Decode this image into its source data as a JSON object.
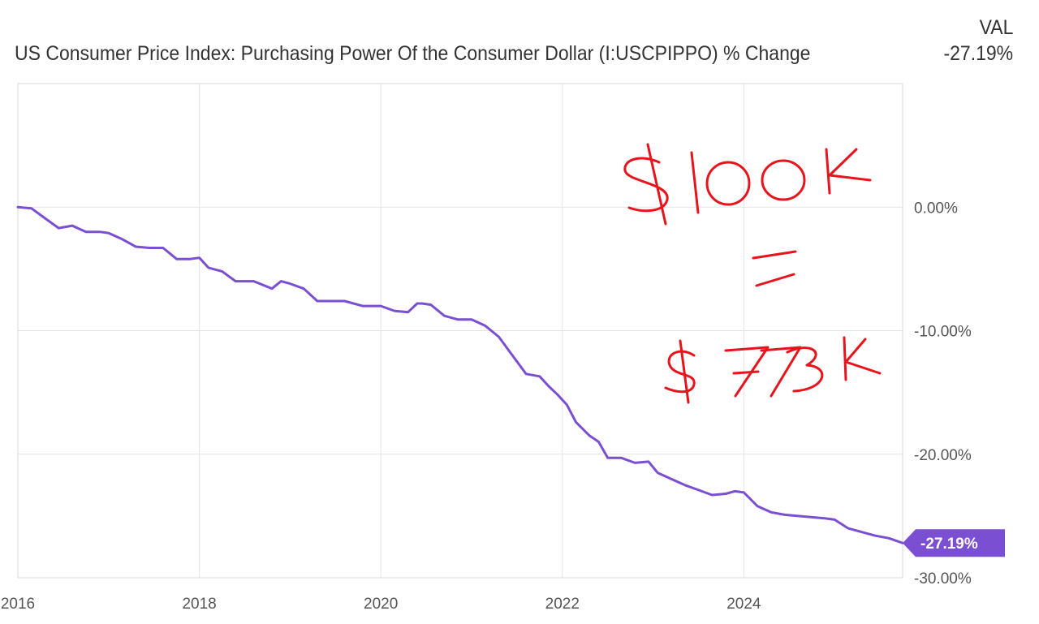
{
  "header": {
    "title": "US Consumer Price Index: Purchasing Power Of the Consumer Dollar (I:USCPIPPO) % Change",
    "val_label": "VAL",
    "val_value": "-27.19%"
  },
  "annotation": {
    "line1": "$100K",
    "line2": "=",
    "line3": "$73K",
    "color": "#e8141c"
  },
  "chart_data": {
    "type": "line",
    "title": "US Consumer Price Index: Purchasing Power Of the Consumer Dollar (I:USCPIPPO) % Change",
    "xlabel": "",
    "ylabel": "",
    "xlim": [
      2016.0,
      2025.75
    ],
    "ylim": [
      -30.0,
      10.0
    ],
    "grid": true,
    "line_color": "#7b4fd1",
    "x_ticks": [
      {
        "value": 2016,
        "label": "2016"
      },
      {
        "value": 2018,
        "label": "2018"
      },
      {
        "value": 2020,
        "label": "2020"
      },
      {
        "value": 2022,
        "label": "2022"
      },
      {
        "value": 2024,
        "label": "2024"
      }
    ],
    "y_ticks": [
      {
        "value": 0,
        "label": "0.00%"
      },
      {
        "value": -10,
        "label": "-10.00%"
      },
      {
        "value": -20,
        "label": "-20.00%"
      },
      {
        "value": -30,
        "label": "-30.00%"
      }
    ],
    "last_value_label": "-27.19%",
    "series": [
      {
        "x": [
          2016.0,
          2016.15,
          2016.3,
          2016.45,
          2016.6,
          2016.75,
          2016.9,
          2017.0,
          2017.15,
          2017.3,
          2017.45,
          2017.6,
          2017.75,
          2017.9,
          2018.0,
          2018.1,
          2018.25,
          2018.4,
          2018.6,
          2018.8,
          2018.9,
          2019.0,
          2019.15,
          2019.3,
          2019.45,
          2019.6,
          2019.8,
          2020.0,
          2020.15,
          2020.3,
          2020.4,
          2020.45,
          2020.55,
          2020.7,
          2020.85,
          2021.0,
          2021.15,
          2021.3,
          2021.45,
          2021.6,
          2021.75,
          2021.85,
          2021.95,
          2022.05,
          2022.15,
          2022.3,
          2022.4,
          2022.5,
          2022.65,
          2022.8,
          2022.95,
          2023.05,
          2023.2,
          2023.35,
          2023.5,
          2023.65,
          2023.8,
          2023.9,
          2024.0,
          2024.15,
          2024.3,
          2024.45,
          2024.6,
          2024.75,
          2024.9,
          2025.0,
          2025.15,
          2025.3,
          2025.45,
          2025.6,
          2025.75
        ],
        "y": [
          0.0,
          -0.1,
          -0.9,
          -1.7,
          -1.5,
          -2.0,
          -2.0,
          -2.1,
          -2.6,
          -3.2,
          -3.3,
          -3.3,
          -4.2,
          -4.2,
          -4.1,
          -4.9,
          -5.2,
          -6.0,
          -6.0,
          -6.6,
          -6.0,
          -6.2,
          -6.6,
          -7.6,
          -7.6,
          -7.6,
          -8.0,
          -8.0,
          -8.4,
          -8.5,
          -7.8,
          -7.8,
          -7.9,
          -8.8,
          -9.1,
          -9.1,
          -9.6,
          -10.5,
          -12.0,
          -13.5,
          -13.7,
          -14.5,
          -15.2,
          -16.0,
          -17.4,
          -18.5,
          -19.0,
          -20.3,
          -20.3,
          -20.7,
          -20.6,
          -21.5,
          -22.0,
          -22.5,
          -22.9,
          -23.3,
          -23.2,
          -23.0,
          -23.1,
          -24.2,
          -24.7,
          -24.9,
          -25.0,
          -25.1,
          -25.2,
          -25.3,
          -26.0,
          -26.3,
          -26.6,
          -26.8,
          -27.19
        ]
      }
    ]
  }
}
